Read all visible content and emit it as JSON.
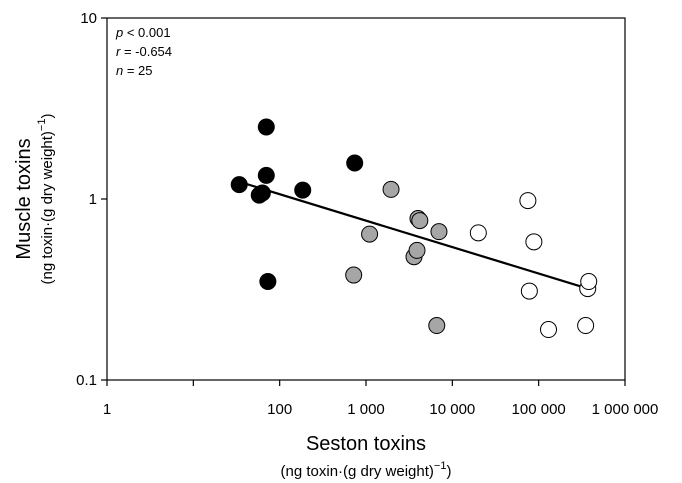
{
  "chart_data": {
    "type": "scatter",
    "xscale": "log",
    "yscale": "log",
    "xlim": [
      1,
      1000000
    ],
    "ylim": [
      0.1,
      10
    ],
    "xlabel": "Seston toxins",
    "xlabel_units_pre": "(ng toxin·(g dry weight)",
    "xlabel_units_sup": "−1",
    "xlabel_units_post": ")",
    "ylabel": "Muscle toxins",
    "ylabel_units_pre": "(ng toxin·(g dry weight)",
    "ylabel_units_sup": "−1",
    "ylabel_units_post": ")",
    "xticks": [
      {
        "value": 1,
        "label": "1"
      },
      {
        "value": 10,
        "label": ""
      },
      {
        "value": 100,
        "label": "100"
      },
      {
        "value": 1000,
        "label": "1 000"
      },
      {
        "value": 10000,
        "label": "10 000"
      },
      {
        "value": 100000,
        "label": "100 000"
      },
      {
        "value": 1000000,
        "label": "1 000 000"
      }
    ],
    "yticks": [
      {
        "value": 0.1,
        "label": "0.1"
      },
      {
        "value": 1,
        "label": "1"
      },
      {
        "value": 10,
        "label": "10"
      }
    ],
    "stats": [
      {
        "symbol": "p",
        "text": " < 0.001"
      },
      {
        "symbol": "r",
        "text": " = -0.654"
      },
      {
        "symbol": "n",
        "text": " = 25"
      }
    ],
    "series": [
      {
        "fill": "#000000",
        "points": [
          {
            "x": 34,
            "y": 1.2
          },
          {
            "x": 58,
            "y": 1.05
          },
          {
            "x": 63,
            "y": 1.08
          },
          {
            "x": 70,
            "y": 2.5
          },
          {
            "x": 70,
            "y": 1.35
          },
          {
            "x": 73,
            "y": 0.35
          },
          {
            "x": 185,
            "y": 1.12
          },
          {
            "x": 740,
            "y": 1.58
          }
        ]
      },
      {
        "fill": "#a6a6a6",
        "points": [
          {
            "x": 720,
            "y": 0.38
          },
          {
            "x": 1100,
            "y": 0.64
          },
          {
            "x": 1950,
            "y": 1.13
          },
          {
            "x": 3600,
            "y": 0.48
          },
          {
            "x": 3900,
            "y": 0.52
          },
          {
            "x": 4000,
            "y": 0.78
          },
          {
            "x": 4200,
            "y": 0.76
          },
          {
            "x": 6600,
            "y": 0.2
          },
          {
            "x": 7000,
            "y": 0.66
          }
        ]
      },
      {
        "fill": "#ffffff",
        "points": [
          {
            "x": 20000,
            "y": 0.65
          },
          {
            "x": 75000,
            "y": 0.98
          },
          {
            "x": 78000,
            "y": 0.31
          },
          {
            "x": 88000,
            "y": 0.58
          },
          {
            "x": 130000,
            "y": 0.19
          },
          {
            "x": 350000,
            "y": 0.2
          },
          {
            "x": 370000,
            "y": 0.32
          },
          {
            "x": 380000,
            "y": 0.35
          }
        ]
      }
    ],
    "regression": {
      "x": [
        33,
        370000
      ],
      "y": [
        1.25,
        0.32
      ]
    }
  }
}
